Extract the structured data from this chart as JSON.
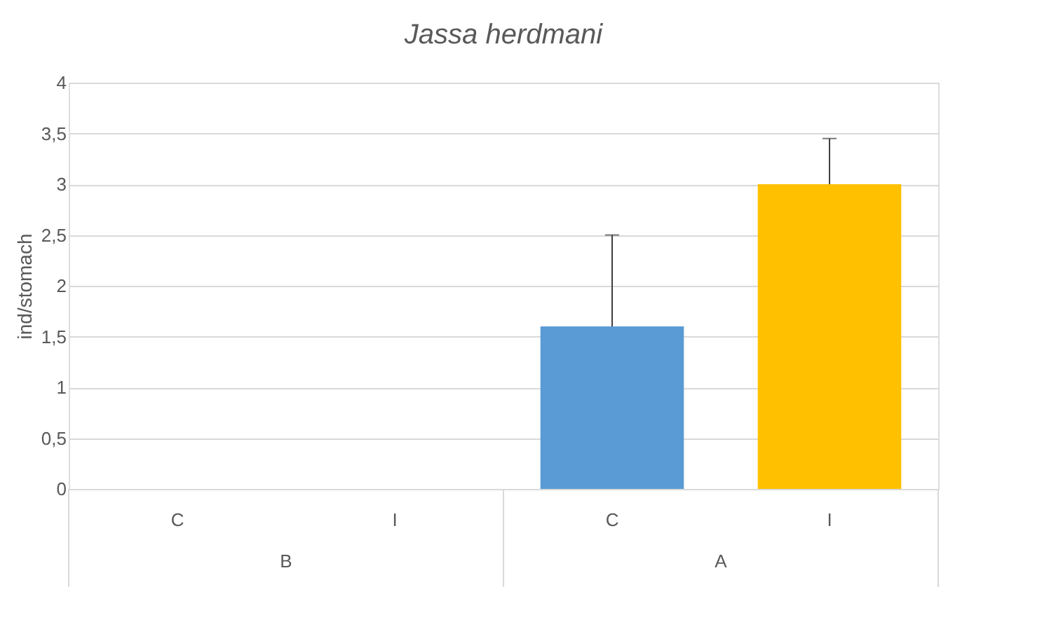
{
  "chart_data": {
    "type": "bar",
    "title": "Jassa herdmani",
    "ylabel": "ind/stomach",
    "categories": [
      "C",
      "I",
      "C",
      "I"
    ],
    "values": [
      0,
      0,
      1.6,
      3.0
    ],
    "colors": [
      "#5b9bd5",
      "#ffc000",
      "#5b9bd5",
      "#ffc000"
    ],
    "errors": [
      null,
      null,
      [
        1.6,
        2.5
      ],
      [
        3.0,
        3.45
      ]
    ],
    "annotations": [
      "B",
      "A"
    ],
    "ylim": [
      0,
      4
    ],
    "yticks": [
      0,
      {
        "value": 0.5,
        "label": "0,5"
      },
      1,
      {
        "value": 1.5,
        "label": "1,5"
      },
      2,
      {
        "value": 2.5,
        "label": "2,5"
      },
      3,
      {
        "value": 3.5,
        "label": "3,5"
      },
      4
    ],
    "grid": "y"
  }
}
